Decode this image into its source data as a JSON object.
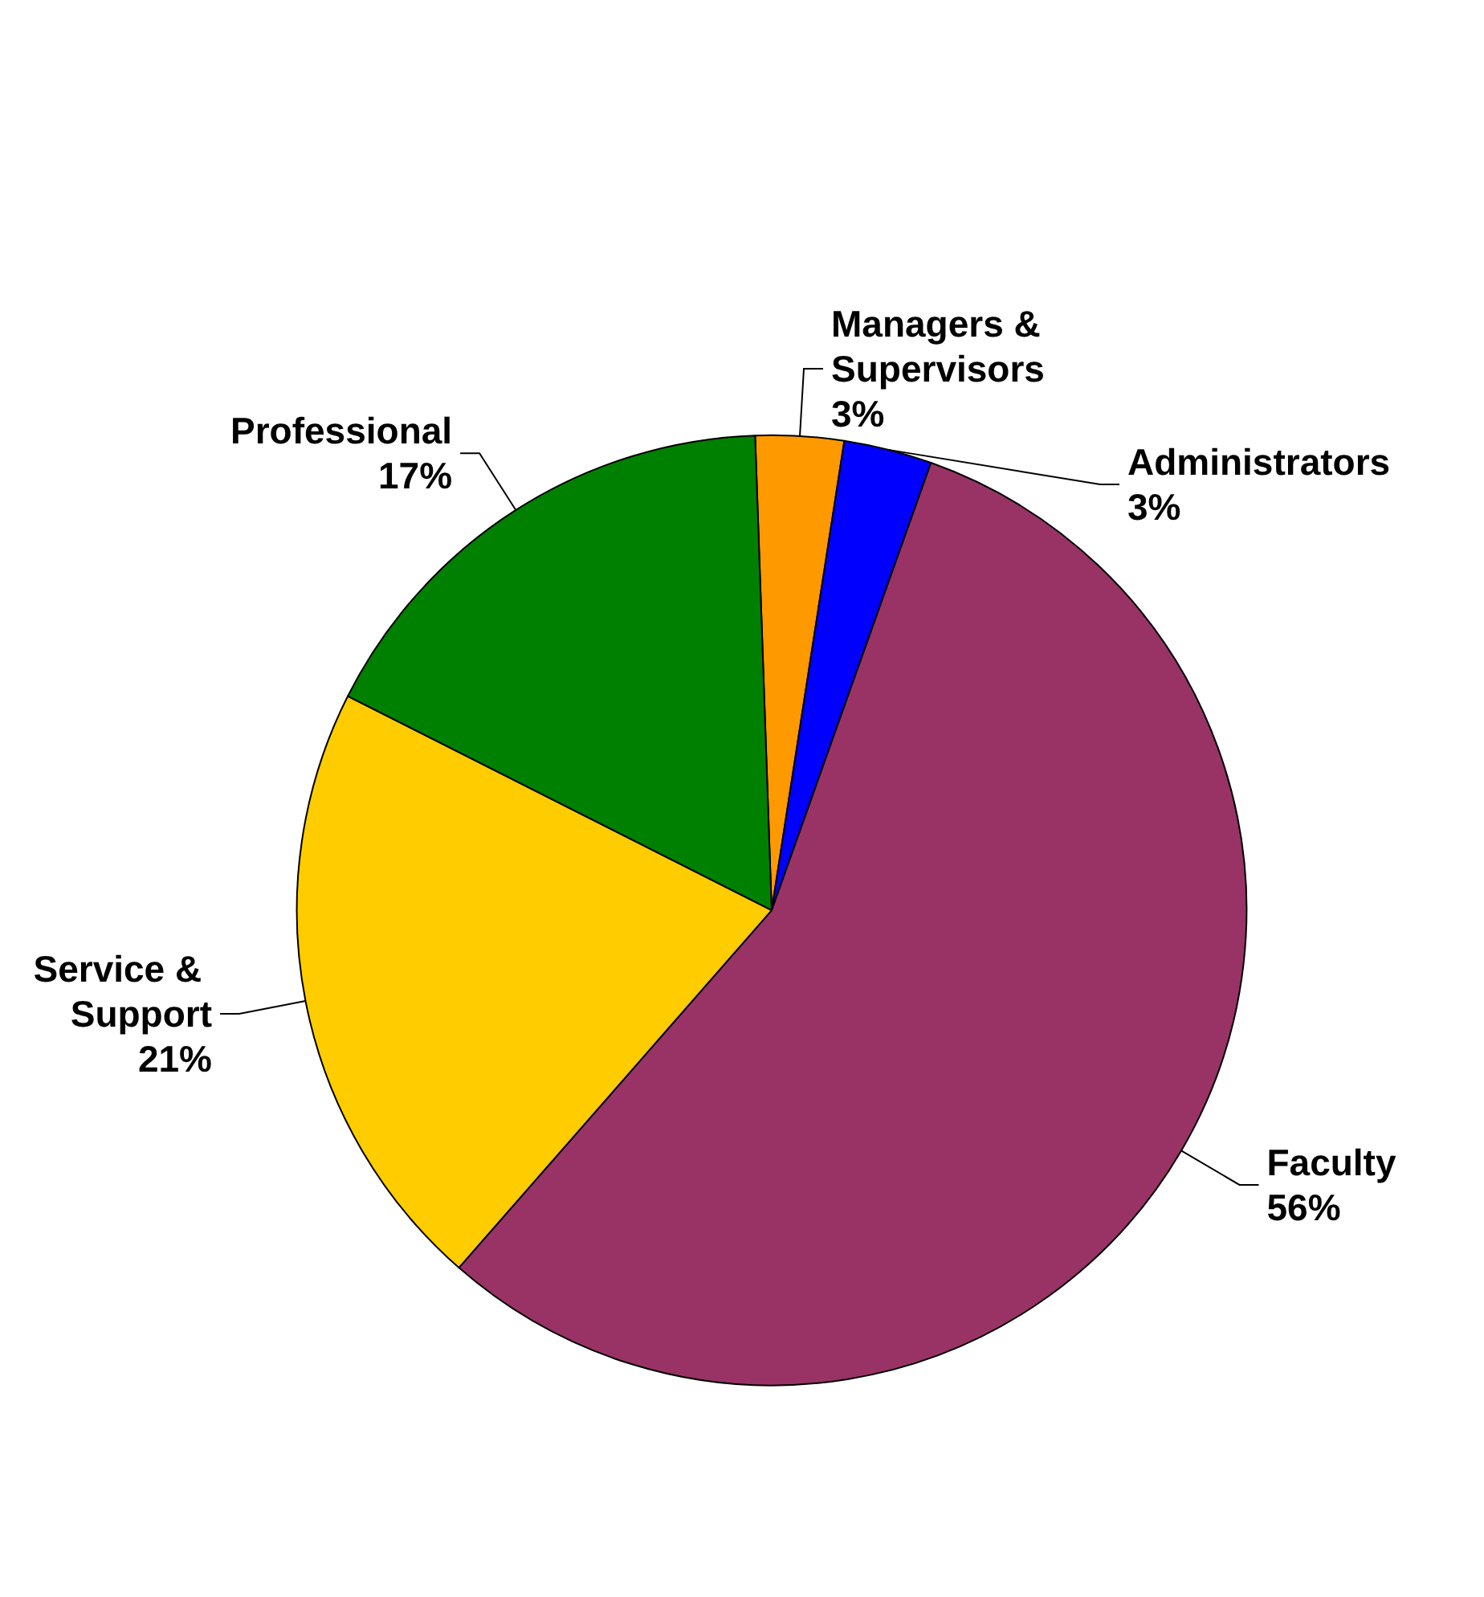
{
  "chart_data": {
    "type": "pie",
    "categories": [
      "Managers & Supervisors",
      "Administrators",
      "Faculty",
      "Service & Support",
      "Professional"
    ],
    "values": [
      3,
      3,
      56,
      21,
      17
    ],
    "value_labels": [
      "3%",
      "3%",
      "56%",
      "21%",
      "17%"
    ],
    "colors": [
      "#ff9900",
      "#0000ff",
      "#993366",
      "#ffcc00",
      "#008000"
    ]
  }
}
